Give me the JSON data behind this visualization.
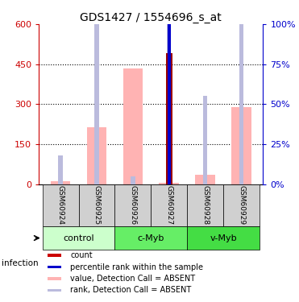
{
  "title": "GDS1427 / 1554696_s_at",
  "samples": [
    "GSM60924",
    "GSM60925",
    "GSM60926",
    "GSM60927",
    "GSM60928",
    "GSM60929"
  ],
  "pink_values": [
    13,
    215,
    435,
    5,
    35,
    290
  ],
  "blue_rank_values": [
    18,
    300,
    5,
    435,
    55,
    295
  ],
  "dark_red_value": [
    0,
    0,
    0,
    490,
    0,
    0
  ],
  "blue_dot_value": [
    0,
    0,
    0,
    440,
    0,
    0
  ],
  "left_ylim": [
    0,
    600
  ],
  "right_ylim": [
    0,
    100
  ],
  "left_yticks": [
    0,
    150,
    300,
    450,
    600
  ],
  "right_yticks": [
    0,
    25,
    50,
    75,
    100
  ],
  "right_yticklabels": [
    "0%",
    "25%",
    "50%",
    "75%",
    "100%"
  ],
  "group_bounds": [
    {
      "start": 0,
      "end": 1,
      "label": "control",
      "color": "#ccffcc"
    },
    {
      "start": 2,
      "end": 3,
      "label": "c-Myb",
      "color": "#66ee66"
    },
    {
      "start": 4,
      "end": 5,
      "label": "v-Myb",
      "color": "#44dd44"
    }
  ],
  "infection_label": "infection",
  "legend_items": [
    {
      "color": "#cc0000",
      "label": "count"
    },
    {
      "color": "#0000cc",
      "label": "percentile rank within the sample"
    },
    {
      "color": "#ffb3b3",
      "label": "value, Detection Call = ABSENT"
    },
    {
      "color": "#bbbbdd",
      "label": "rank, Detection Call = ABSENT"
    }
  ],
  "pink_color": "#ffb3b3",
  "blue_rank_color": "#bbbbdd",
  "dark_red_color": "#990000",
  "blue_dot_color": "#0000cc",
  "title_fontsize": 10,
  "axis_color_left": "#cc0000",
  "axis_color_right": "#0000cc",
  "scale_ratio": 6.0
}
